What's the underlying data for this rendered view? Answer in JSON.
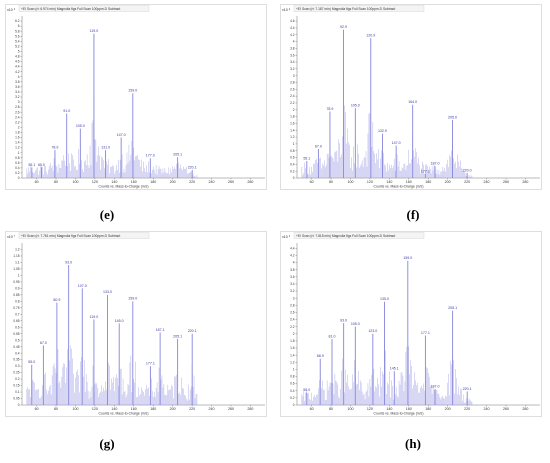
{
  "chart_data": [
    {
      "type": "bar",
      "panel": "e",
      "caption": "(e)",
      "title": "+EI Scan (rt: 6.974 min) Magnolia flgs Full Scan 100ppm.D Subtract",
      "ymultiplier": "x10 ⁶",
      "xlabel": "Counts vs. Mass-to-Charge (m/z)",
      "xlim": [
        45,
        295
      ],
      "ylim": [
        0,
        6.4
      ],
      "xticks": [
        60,
        80,
        100,
        120,
        140,
        160,
        180,
        200,
        220,
        240,
        260,
        280
      ],
      "yticks": [
        "0",
        "0.2",
        "0.4",
        "0.6",
        "0.8",
        "1",
        "1.2",
        "1.4",
        "1.6",
        "1.8",
        "2",
        "2.2",
        "2.4",
        "2.6",
        "2.8",
        "3",
        "3.2",
        "3.4",
        "3.6",
        "3.8",
        "4",
        "4.2",
        "4.4",
        "4.6",
        "4.8",
        "5",
        "5.2",
        "5.4",
        "5.6",
        "5.8",
        "6",
        "6.2"
      ],
      "peaks": [
        {
          "mz": 55.1,
          "label": "55.1",
          "value": 0.42
        },
        {
          "mz": 65.0,
          "label": "65.0",
          "value": 0.42
        },
        {
          "mz": 78.9,
          "label": "78.9",
          "value": 1.1
        },
        {
          "mz": 91.0,
          "label": "91.0",
          "value": 2.55
        },
        {
          "mz": 105.0,
          "label": "105.0",
          "value": 1.95
        },
        {
          "mz": 119.0,
          "label": "119.0",
          "value": 5.7
        },
        {
          "mz": 131.0,
          "label": "131.0",
          "value": 1.1
        },
        {
          "mz": 147.0,
          "label": "147.0",
          "value": 1.6
        },
        {
          "mz": 159.0,
          "label": "159.0",
          "value": 3.35
        },
        {
          "mz": 177.0,
          "label": "177.0",
          "value": 0.78
        },
        {
          "mz": 205.1,
          "label": "205.1",
          "value": 0.82
        },
        {
          "mz": 220.1,
          "label": "220.1",
          "value": 0.32
        }
      ]
    },
    {
      "type": "bar",
      "panel": "f",
      "caption": "(f)",
      "title": "+EI Scan (rt: 7.187 min) Magnolia flgs Full Scan 100ppm.D Subtract",
      "ymultiplier": "x10 ⁶",
      "xlabel": "Counts vs. Mass-to-Charge (m/z)",
      "xlim": [
        45,
        295
      ],
      "ylim": [
        0,
        4.75
      ],
      "xticks": [
        60,
        80,
        100,
        120,
        140,
        160,
        180,
        200,
        220,
        240,
        260,
        280
      ],
      "yticks": [
        "0",
        "0.2",
        "0.4",
        "0.6",
        "0.8",
        "1",
        "1.2",
        "1.4",
        "1.6",
        "1.8",
        "2",
        "2.2",
        "2.4",
        "2.6",
        "2.8",
        "3",
        "3.2",
        "3.4",
        "3.6",
        "3.8",
        "4",
        "4.2",
        "4.4",
        "4.6"
      ],
      "peaks": [
        {
          "mz": 55.1,
          "label": "55.1",
          "value": 0.5
        },
        {
          "mz": 67.0,
          "label": "67.0",
          "value": 0.85
        },
        {
          "mz": 78.9,
          "label": "78.9",
          "value": 1.95
        },
        {
          "mz": 92.9,
          "label": "92.9",
          "value": 4.35
        },
        {
          "mz": 105.0,
          "label": "105.0",
          "value": 2.05
        },
        {
          "mz": 120.9,
          "label": "120.9",
          "value": 4.1
        },
        {
          "mz": 132.9,
          "label": "132.9",
          "value": 1.3
        },
        {
          "mz": 147.0,
          "label": "147.0",
          "value": 0.95
        },
        {
          "mz": 164.0,
          "label": "164.0",
          "value": 2.15
        },
        {
          "mz": 177.1,
          "label": "177.1",
          "value": 0.12
        },
        {
          "mz": 187.0,
          "label": "187.0",
          "value": 0.35
        },
        {
          "mz": 205.0,
          "label": "205.0",
          "value": 1.7
        },
        {
          "mz": 220.0,
          "label": "220.0",
          "value": 0.15
        }
      ]
    },
    {
      "type": "bar",
      "panel": "g",
      "caption": "(g)",
      "title": "+EI Scan (rt: 7.761 min) Magnolia flgs Full Scan 100ppm.D Subtract",
      "ymultiplier": "x10 ⁷",
      "xlabel": "Counts vs. Mass-to-Charge (m/z)",
      "xlim": [
        45,
        295
      ],
      "ylim": [
        0,
        1.25
      ],
      "xticks": [
        60,
        80,
        100,
        120,
        140,
        160,
        180,
        200,
        220,
        240,
        260,
        280
      ],
      "yticks": [
        "0",
        "0.05",
        "0.1",
        "0.15",
        "0.2",
        "0.25",
        "0.3",
        "0.35",
        "0.4",
        "0.45",
        "0.5",
        "0.55",
        "0.6",
        "0.65",
        "0.7",
        "0.75",
        "0.8",
        "0.85",
        "0.9",
        "0.95",
        "1",
        "1.05",
        "1.1",
        "1.15",
        "1.2"
      ],
      "peaks": [
        {
          "mz": 55.0,
          "label": "55.0",
          "value": 0.31
        },
        {
          "mz": 67.0,
          "label": "67.0",
          "value": 0.46
        },
        {
          "mz": 80.9,
          "label": "80.9",
          "value": 0.79
        },
        {
          "mz": 93.0,
          "label": "93.0",
          "value": 1.08
        },
        {
          "mz": 107.0,
          "label": "107.0",
          "value": 0.9
        },
        {
          "mz": 119.0,
          "label": "119.0",
          "value": 0.66
        },
        {
          "mz": 133.0,
          "label": "133.0",
          "value": 0.85
        },
        {
          "mz": 145.0,
          "label": "145.0",
          "value": 0.63
        },
        {
          "mz": 159.0,
          "label": "159.0",
          "value": 0.8
        },
        {
          "mz": 177.1,
          "label": "177.1",
          "value": 0.3
        },
        {
          "mz": 187.1,
          "label": "187.1",
          "value": 0.56
        },
        {
          "mz": 205.1,
          "label": "205.1",
          "value": 0.51
        },
        {
          "mz": 220.1,
          "label": "220.1",
          "value": 0.55
        }
      ]
    },
    {
      "type": "bar",
      "panel": "h",
      "caption": "(h)",
      "title": "+EI Scan (rt: 7.818 min) Magnolia flgs Full Scan 100ppm.D Subtract",
      "ymultiplier": "x10 ⁶",
      "xlabel": "Counts vs. Mass-to-Charge (m/z)",
      "xlim": [
        45,
        295
      ],
      "ylim": [
        0,
        4.55
      ],
      "xticks": [
        60,
        80,
        100,
        120,
        140,
        160,
        180,
        200,
        220,
        240,
        260,
        280
      ],
      "yticks": [
        "0",
        "0.2",
        "0.4",
        "0.6",
        "0.8",
        "1",
        "1.2",
        "1.4",
        "1.6",
        "1.8",
        "2",
        "2.2",
        "2.4",
        "2.6",
        "2.8",
        "3",
        "3.2",
        "3.4",
        "3.6",
        "3.8",
        "4",
        "4.2",
        "4.4"
      ],
      "peaks": [
        {
          "mz": 55.0,
          "label": "55.0",
          "value": 0.35
        },
        {
          "mz": 68.9,
          "label": "68.9",
          "value": 1.3
        },
        {
          "mz": 81.0,
          "label": "81.0",
          "value": 1.85
        },
        {
          "mz": 93.0,
          "label": "93.0",
          "value": 2.3
        },
        {
          "mz": 105.0,
          "label": "105.0",
          "value": 2.2
        },
        {
          "mz": 123.0,
          "label": "123.0",
          "value": 2.0
        },
        {
          "mz": 135.0,
          "label": "135.0",
          "value": 2.9
        },
        {
          "mz": 145.1,
          "label": "145.1",
          "value": 0.95
        },
        {
          "mz": 159.0,
          "label": "159.0",
          "value": 4.05
        },
        {
          "mz": 177.1,
          "label": "177.1",
          "value": 1.95
        },
        {
          "mz": 187.0,
          "label": "187.0",
          "value": 0.45
        },
        {
          "mz": 205.1,
          "label": "205.1",
          "value": 2.65
        },
        {
          "mz": 220.1,
          "label": "220.1",
          "value": 0.38
        }
      ]
    }
  ]
}
